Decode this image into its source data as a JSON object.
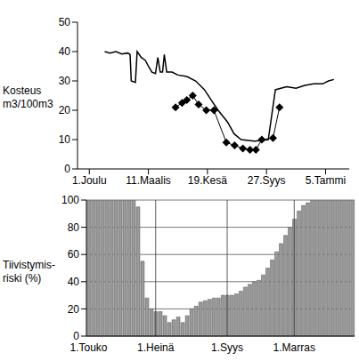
{
  "chart_data": [
    {
      "type": "line",
      "ylabel": "Kosteus\nm3/100m3",
      "xlim": [
        -20,
        440
      ],
      "xticks": [
        {
          "value": 0,
          "label": "1.Joulu"
        },
        {
          "value": 100,
          "label": "11.Maalis"
        },
        {
          "value": 200,
          "label": "19.Kesä"
        },
        {
          "value": 300,
          "label": "27.Syys"
        },
        {
          "value": 400,
          "label": "5.Tammi"
        }
      ],
      "ylim": [
        0,
        50
      ],
      "yticks": [
        0,
        10,
        20,
        30,
        40,
        50
      ],
      "series": [
        {
          "color": "#000000",
          "x": [
            26,
            35,
            45,
            55,
            65,
            69,
            71,
            78,
            81,
            88,
            95,
            100,
            106,
            112,
            116,
            120,
            124,
            127,
            131,
            140,
            150,
            165,
            180,
            195,
            208,
            218,
            234,
            245,
            257,
            280,
            303,
            315,
            334,
            350,
            365,
            380,
            395,
            405,
            414
          ],
          "values": [
            40,
            39.5,
            40,
            39.2,
            39.5,
            39,
            30,
            29.5,
            40,
            38,
            37,
            35,
            33,
            32.5,
            38,
            33,
            33,
            39,
            33,
            33,
            32,
            31.5,
            30,
            27,
            23,
            20,
            16,
            12,
            10,
            9.5,
            10,
            27,
            28,
            27.5,
            28.5,
            29,
            29,
            30,
            30.5
          ]
        },
        {
          "color": "#000000",
          "marker": "diamond",
          "x": [
            146,
            157,
            165,
            175,
            185,
            198,
            211,
            232,
            246,
            260,
            272,
            282,
            292,
            311,
            322
          ],
          "values": [
            21,
            22.5,
            23.5,
            25,
            22,
            20,
            20,
            9,
            8,
            7,
            6.5,
            6.5,
            10,
            10.5,
            21
          ]
        }
      ]
    },
    {
      "type": "bar",
      "ylabel": "Tiivistymis-\nriski (%)",
      "categories": [
        "1.Touko",
        null,
        null,
        null,
        null,
        null,
        null,
        null,
        null,
        null,
        null,
        null,
        null,
        null,
        null,
        "1.Heinä",
        null,
        null,
        null,
        null,
        null,
        null,
        null,
        null,
        null,
        null,
        null,
        null,
        null,
        null,
        null,
        "1.Syys",
        null,
        null,
        null,
        null,
        null,
        null,
        null,
        null,
        null,
        null,
        null,
        null,
        null,
        null,
        "1.Marras",
        null,
        null,
        null,
        null,
        null,
        null,
        null,
        null,
        null,
        null,
        null,
        null,
        null
      ],
      "values": [
        100,
        100,
        100,
        100,
        100,
        100,
        100,
        100,
        100,
        100,
        100,
        95,
        55,
        28,
        20,
        18,
        18,
        15,
        10,
        12,
        14,
        10,
        15,
        20,
        22,
        25,
        26,
        27,
        28,
        28,
        30,
        30,
        30,
        31,
        33,
        36,
        38,
        40,
        41,
        45,
        50,
        56,
        62,
        68,
        74,
        80,
        86,
        92,
        96,
        98,
        100,
        100,
        100,
        100,
        100,
        100,
        100,
        100,
        100,
        100
      ],
      "color": "#999999",
      "ylim": [
        0,
        100
      ],
      "yticks": [
        0,
        20,
        40,
        60,
        80,
        100
      ],
      "grid": true
    }
  ]
}
